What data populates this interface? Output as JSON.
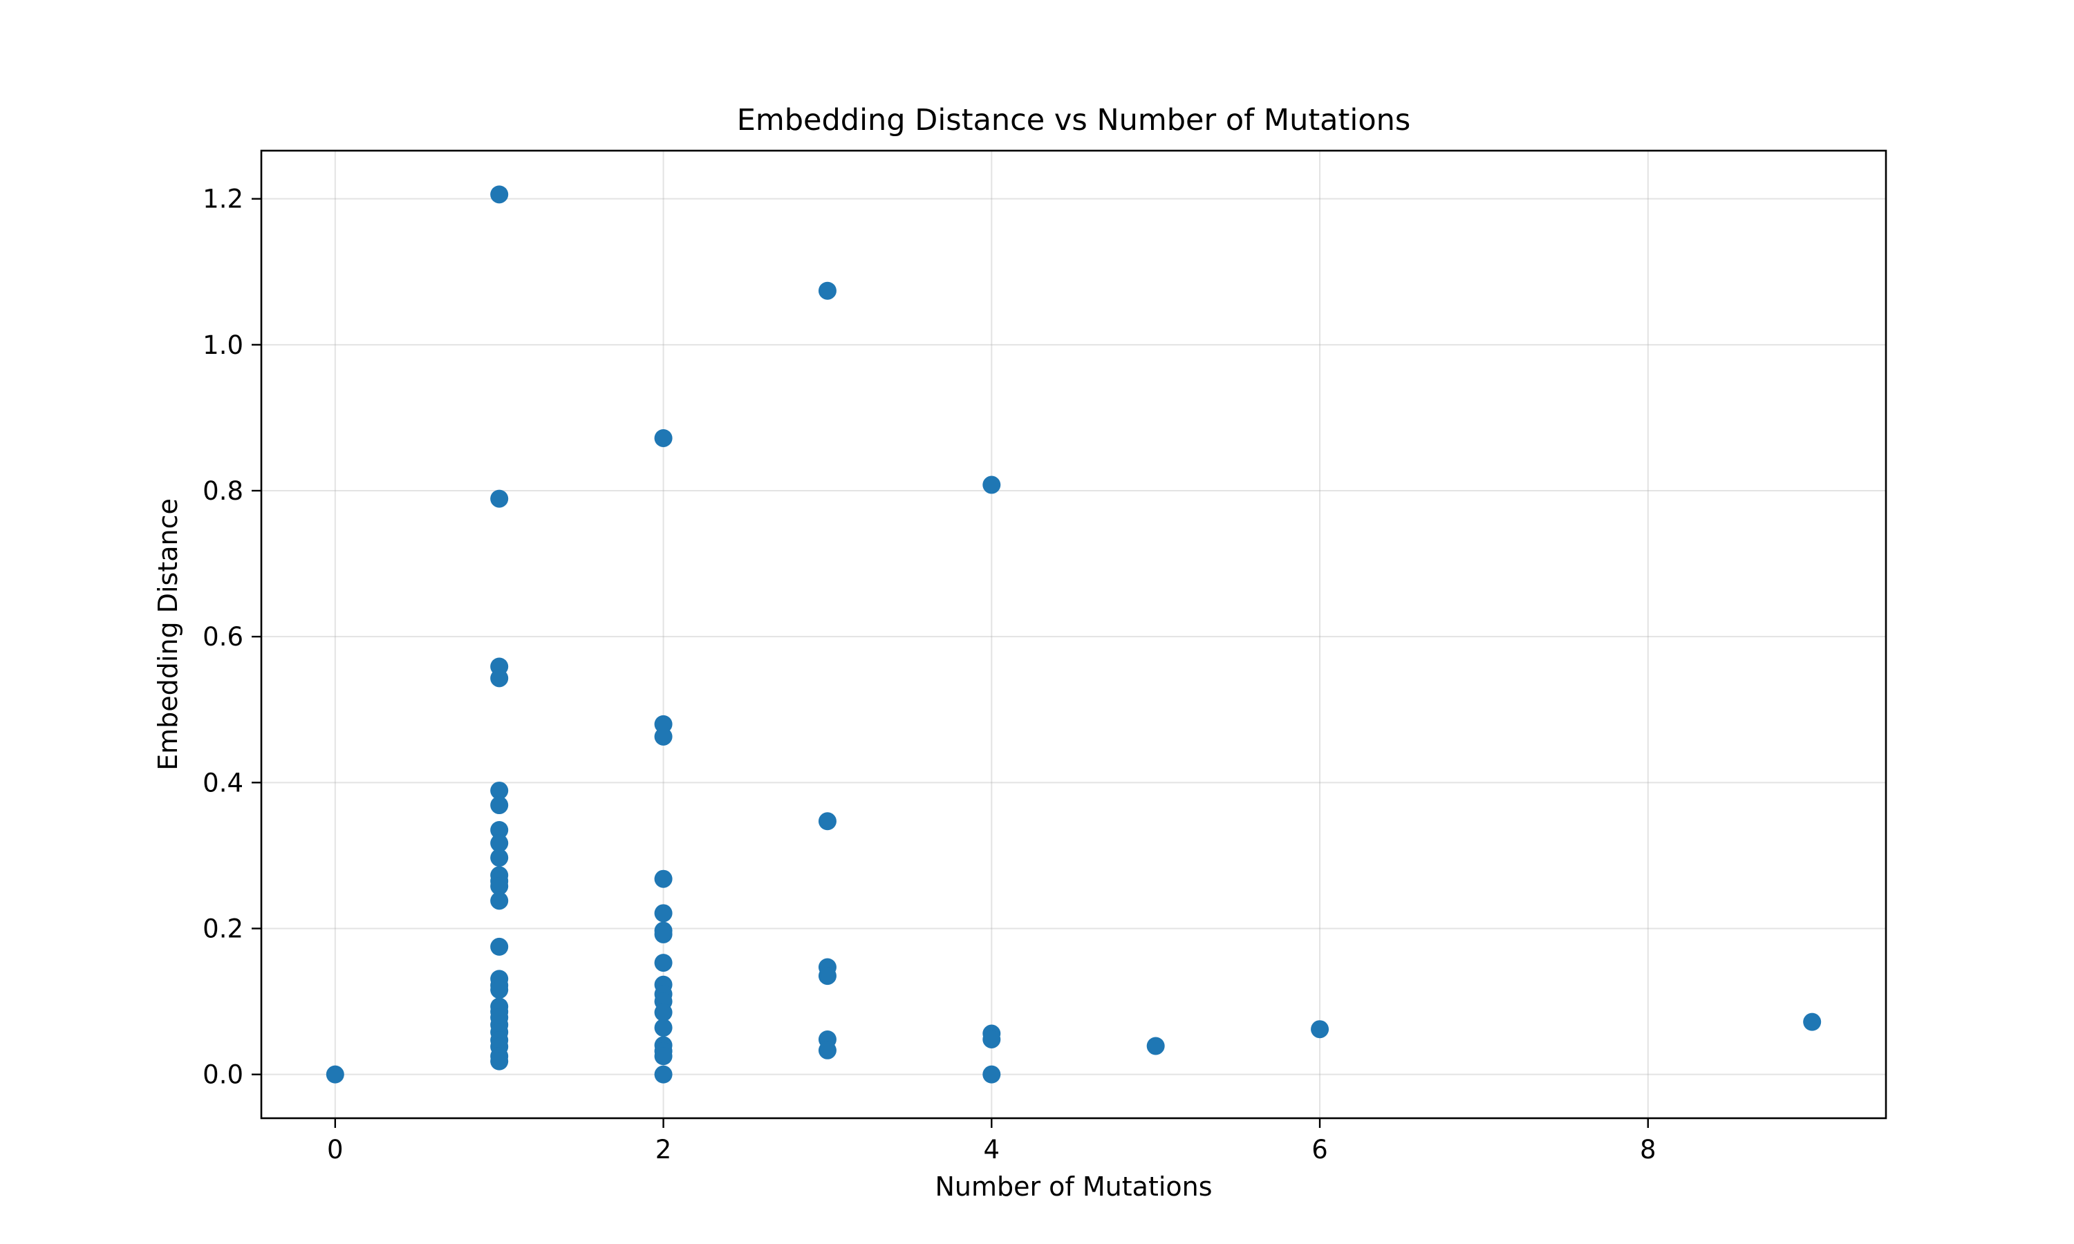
{
  "chart_data": {
    "type": "scatter",
    "title": "Embedding Distance vs Number of Mutations",
    "xlabel": "Number of Mutations",
    "ylabel": "Embedding Distance",
    "xlim": [
      -0.45,
      9.45
    ],
    "ylim": [
      -0.06,
      1.266
    ],
    "xticks": [
      0,
      2,
      4,
      6,
      8
    ],
    "yticks": [
      0.0,
      0.2,
      0.4,
      0.6,
      0.8,
      1.0,
      1.2
    ],
    "ytick_labels": [
      "0.0",
      "0.2",
      "0.4",
      "0.6",
      "0.8",
      "1.0",
      "1.2"
    ],
    "grid": true,
    "marker_color": "#1f77b4",
    "series": [
      {
        "points": [
          [
            0,
            0.0
          ],
          [
            1,
            1.206
          ],
          [
            1,
            0.789
          ],
          [
            1,
            0.559
          ],
          [
            1,
            0.543
          ],
          [
            1,
            0.389
          ],
          [
            1,
            0.369
          ],
          [
            1,
            0.335
          ],
          [
            1,
            0.317
          ],
          [
            1,
            0.297
          ],
          [
            1,
            0.273
          ],
          [
            1,
            0.265
          ],
          [
            1,
            0.258
          ],
          [
            1,
            0.238
          ],
          [
            1,
            0.175
          ],
          [
            1,
            0.131
          ],
          [
            1,
            0.122
          ],
          [
            1,
            0.116
          ],
          [
            1,
            0.093
          ],
          [
            1,
            0.086
          ],
          [
            1,
            0.078
          ],
          [
            1,
            0.068
          ],
          [
            1,
            0.058
          ],
          [
            1,
            0.047
          ],
          [
            1,
            0.038
          ],
          [
            1,
            0.025
          ],
          [
            1,
            0.018
          ],
          [
            2,
            0.872
          ],
          [
            2,
            0.48
          ],
          [
            2,
            0.463
          ],
          [
            2,
            0.268
          ],
          [
            2,
            0.221
          ],
          [
            2,
            0.197
          ],
          [
            2,
            0.192
          ],
          [
            2,
            0.153
          ],
          [
            2,
            0.123
          ],
          [
            2,
            0.11
          ],
          [
            2,
            0.1
          ],
          [
            2,
            0.085
          ],
          [
            2,
            0.064
          ],
          [
            2,
            0.04
          ],
          [
            2,
            0.032
          ],
          [
            2,
            0.025
          ],
          [
            2,
            0.0
          ],
          [
            3,
            1.074
          ],
          [
            3,
            0.347
          ],
          [
            3,
            0.147
          ],
          [
            3,
            0.135
          ],
          [
            3,
            0.048
          ],
          [
            3,
            0.033
          ],
          [
            4,
            0.808
          ],
          [
            4,
            0.056
          ],
          [
            4,
            0.048
          ],
          [
            4,
            0.0
          ],
          [
            5,
            0.039
          ],
          [
            6,
            0.062
          ],
          [
            9,
            0.072
          ]
        ]
      }
    ]
  }
}
